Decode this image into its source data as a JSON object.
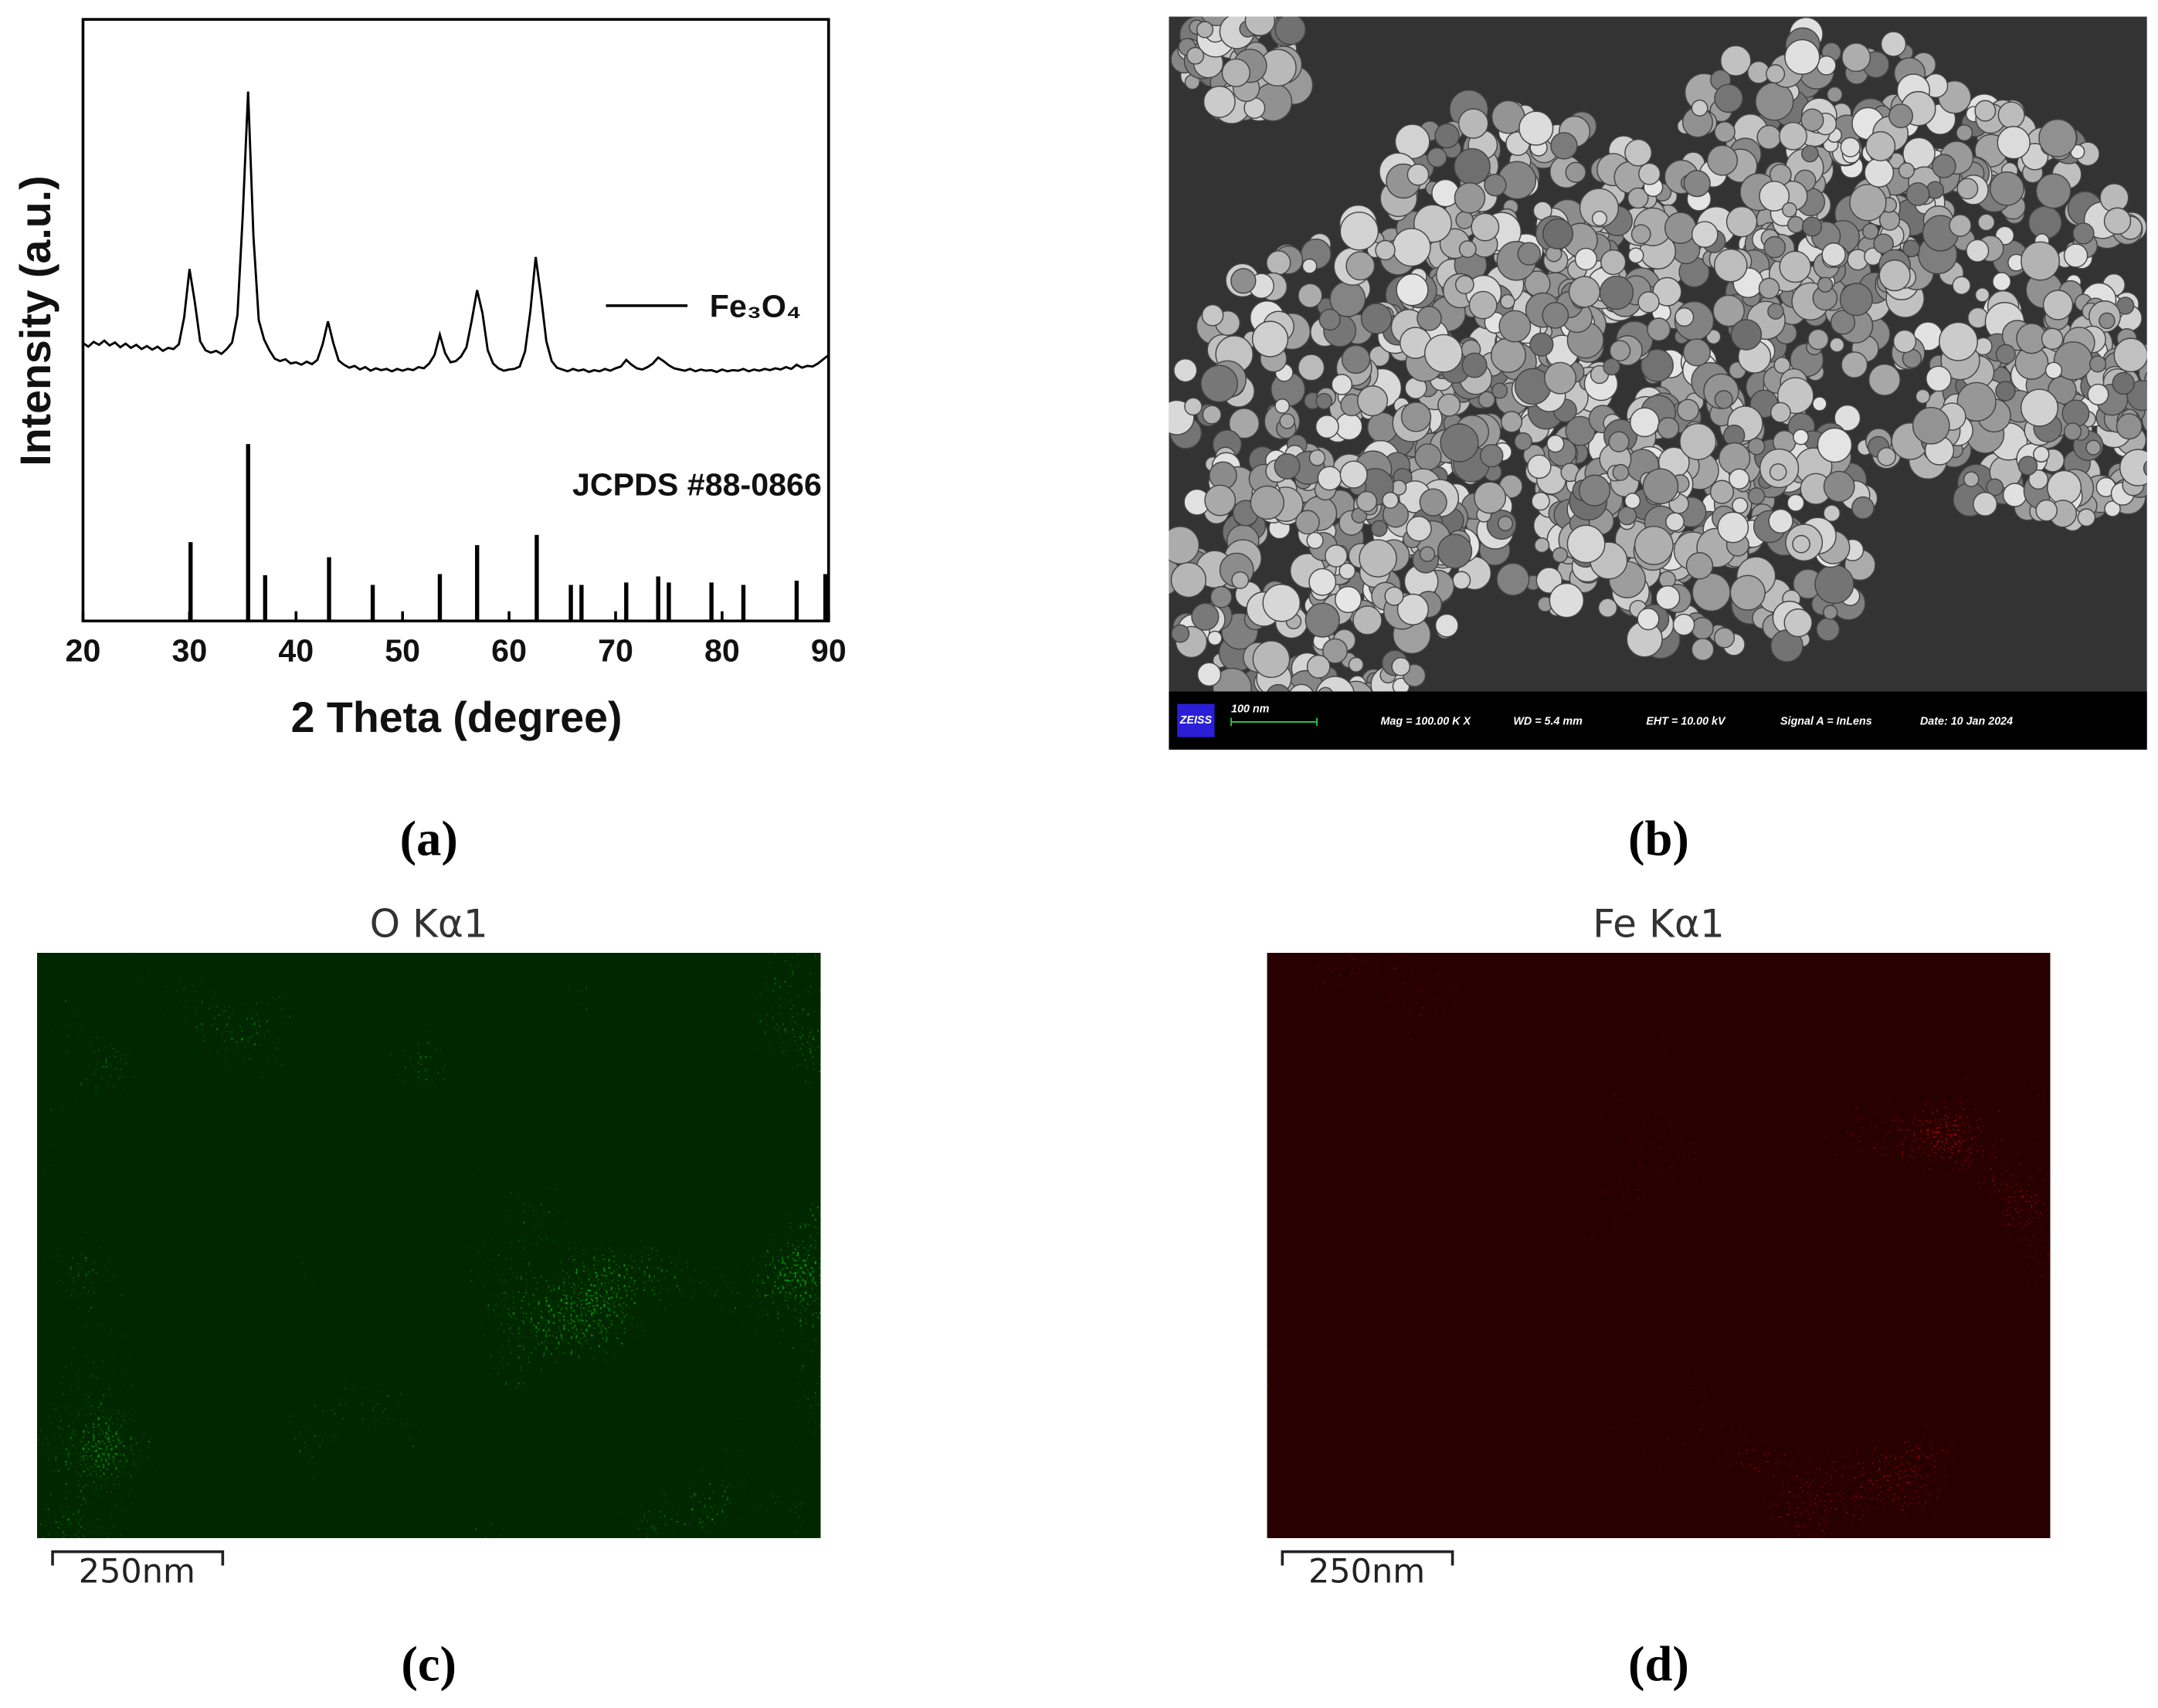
{
  "chart_data": {
    "type": "line",
    "xlabel": "2 Theta (degree)",
    "ylabel": "Intensity (a.u.)",
    "xlim": [
      20,
      90
    ],
    "xticks": [
      20,
      30,
      40,
      50,
      60,
      70,
      80,
      90
    ],
    "ylim": [
      0,
      100
    ],
    "x": [
      20,
      20.5,
      21,
      21.5,
      22,
      22.5,
      23,
      23.5,
      24,
      24.5,
      25,
      25.5,
      26,
      26.5,
      27,
      27.5,
      28,
      28.5,
      29,
      29.5,
      30,
      30.5,
      31,
      31.5,
      32,
      32.5,
      33,
      33.5,
      34,
      34.5,
      35,
      35.5,
      36,
      36.5,
      37,
      37.5,
      38,
      38.5,
      39,
      39.5,
      40,
      40.5,
      41,
      41.5,
      42,
      42.5,
      43,
      43.5,
      44,
      44.5,
      45,
      45.5,
      46,
      46.5,
      47,
      47.5,
      48,
      48.5,
      49,
      49.5,
      50,
      50.5,
      51,
      51.5,
      52,
      52.5,
      53,
      53.5,
      54,
      54.5,
      55,
      55.5,
      56,
      56.5,
      57,
      57.5,
      58,
      58.5,
      59,
      59.5,
      60,
      60.5,
      61,
      61.5,
      62,
      62.5,
      63,
      63.5,
      64,
      64.5,
      65,
      65.5,
      66,
      66.5,
      67,
      67.5,
      68,
      68.5,
      69,
      69.5,
      70,
      70.5,
      71,
      71.5,
      72,
      72.5,
      73,
      73.5,
      74,
      74.5,
      75,
      75.5,
      76,
      76.5,
      77,
      77.5,
      78,
      78.5,
      79,
      79.5,
      80,
      80.5,
      81,
      81.5,
      82,
      82.5,
      83,
      83.5,
      84,
      84.5,
      85,
      85.5,
      86,
      86.5,
      87,
      87.5,
      88,
      88.5,
      89,
      89.5,
      90
    ],
    "series": [
      {
        "name": "Fe₃O₄",
        "color": "#000000",
        "values": [
          46.2,
          45.6,
          46.4,
          45.9,
          46.6,
          45.8,
          46.3,
          45.5,
          46.1,
          45.4,
          45.9,
          45.2,
          45.7,
          45.1,
          45.6,
          44.9,
          45.4,
          45.2,
          46.0,
          50.5,
          58.5,
          53.0,
          46.5,
          45.0,
          44.6,
          44.9,
          44.4,
          45.2,
          46.3,
          50.8,
          67.5,
          88.0,
          64.0,
          50.0,
          46.8,
          45.0,
          43.6,
          43.2,
          43.5,
          42.8,
          43.0,
          42.6,
          43.1,
          42.7,
          43.4,
          46.0,
          49.8,
          46.2,
          43.3,
          42.6,
          42.1,
          42.4,
          41.8,
          42.2,
          41.6,
          42.0,
          41.7,
          41.9,
          41.5,
          41.9,
          41.6,
          41.9,
          41.7,
          42.2,
          42.0,
          42.8,
          44.2,
          47.6,
          44.5,
          43.0,
          43.2,
          44.0,
          45.5,
          50.0,
          55.0,
          51.2,
          45.0,
          42.8,
          42.0,
          41.6,
          41.8,
          41.9,
          42.3,
          44.8,
          51.5,
          60.5,
          54.0,
          46.5,
          43.2,
          42.1,
          41.8,
          41.5,
          41.9,
          41.6,
          41.8,
          41.4,
          41.7,
          41.5,
          41.9,
          41.6,
          42.0,
          42.3,
          43.4,
          42.6,
          42.0,
          41.8,
          42.2,
          42.8,
          43.8,
          43.2,
          42.5,
          42.0,
          41.8,
          41.6,
          41.9,
          41.5,
          41.8,
          41.6,
          41.7,
          41.4,
          41.8,
          41.5,
          41.7,
          41.6,
          41.9,
          41.5,
          41.8,
          41.6,
          41.9,
          41.7,
          42.0,
          41.8,
          42.2,
          41.9,
          42.6,
          42.1,
          42.4,
          42.3,
          42.8,
          43.5,
          44.2
        ]
      },
      {
        "name": "JCPDS #88-0866",
        "type": "stem",
        "color": "#000000",
        "x": [
          30.1,
          35.5,
          37.1,
          43.1,
          47.2,
          53.5,
          57.0,
          62.6,
          65.8,
          66.8,
          71.0,
          74.0,
          75.0,
          79.0,
          82.0,
          87.0,
          89.7
        ],
        "values": [
          13.1,
          29.4,
          7.6,
          10.6,
          6.0,
          7.8,
          12.6,
          14.3,
          6.0,
          6.0,
          6.4,
          7.4,
          6.4,
          6.4,
          6.0,
          6.7,
          7.8
        ]
      }
    ]
  },
  "panel_labels": [
    "(a)",
    "(b)",
    "(c)",
    "(d)"
  ],
  "sem_info": {
    "logo": "ZEISS",
    "scale_bar": "100 nm",
    "mag": "Mag = 100.00 K X",
    "wd": "WD = 5.4 mm",
    "eht": "EHT = 10.00 kV",
    "signal": "Signal A = InLens",
    "date": "Date: 10 Jan 2024"
  },
  "eds_maps": [
    {
      "title": "O Kα1",
      "scale_bar": "250nm"
    },
    {
      "title": "Fe Kα1",
      "scale_bar": "250nm"
    }
  ]
}
